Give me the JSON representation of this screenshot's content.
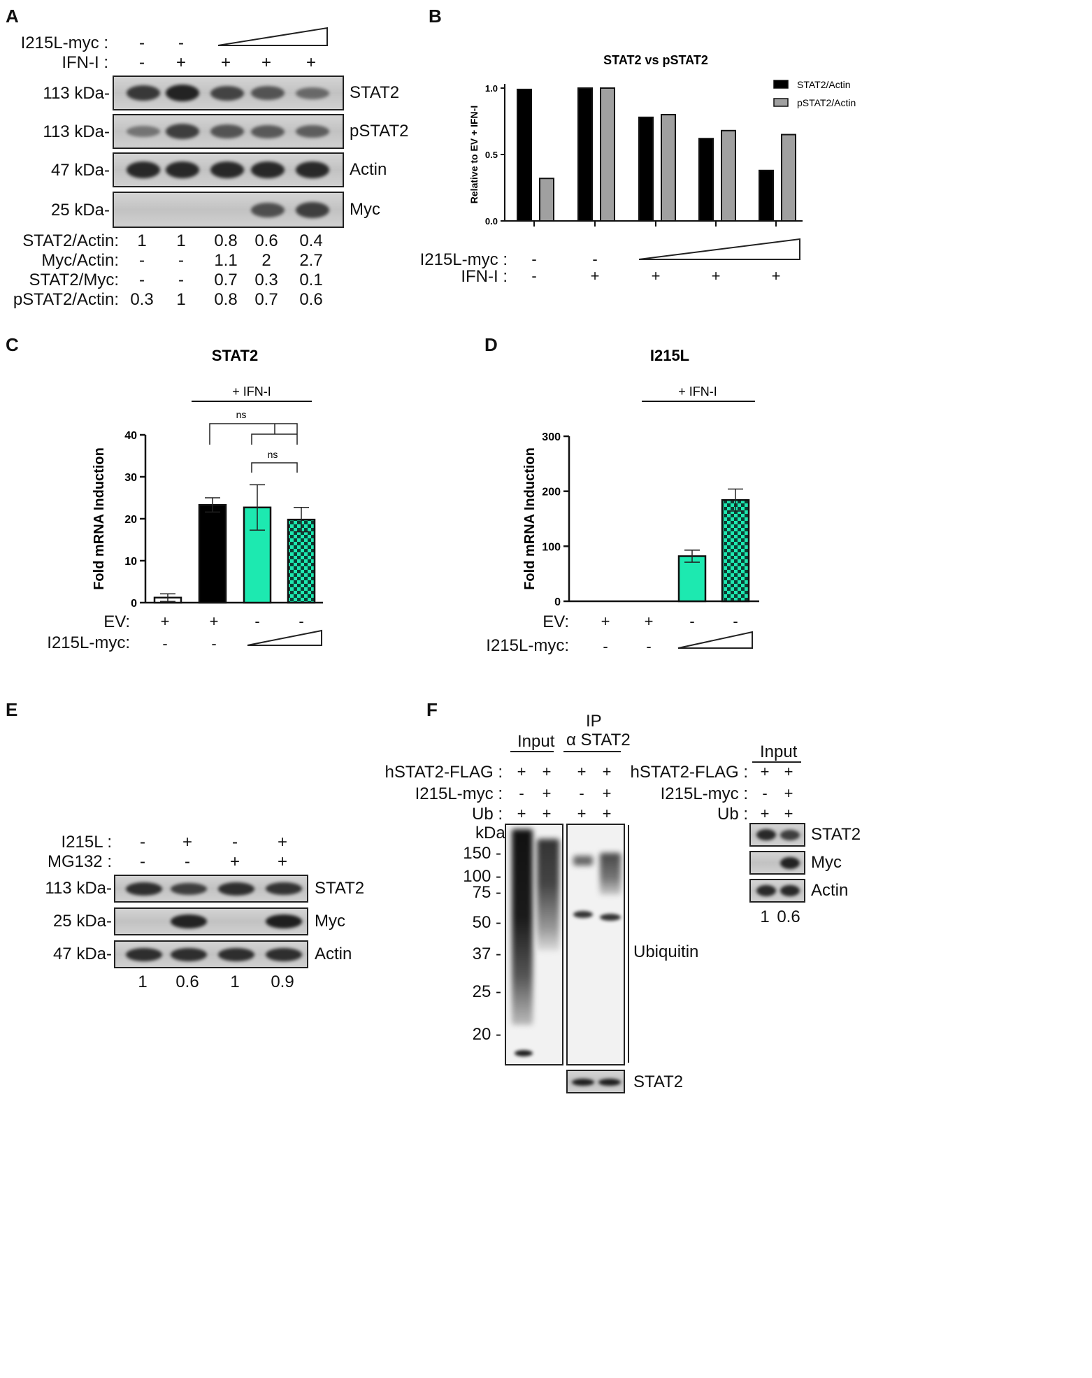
{
  "panels": {
    "A": {
      "letter": "A",
      "row_labels": [
        "I215L-myc :",
        "IFN-I :"
      ],
      "i215l_signs": [
        "-",
        "-"
      ],
      "ifn_signs": [
        "-",
        "+",
        "+",
        "+",
        "+"
      ],
      "blots": [
        {
          "mw": "113 kDa-",
          "name": "STAT2",
          "intensity": [
            0.75,
            0.95,
            0.65,
            0.5,
            0.3
          ]
        },
        {
          "mw": "113 kDa-",
          "name": "pSTAT2",
          "intensity": [
            0.2,
            0.7,
            0.5,
            0.45,
            0.4
          ]
        },
        {
          "mw": "47 kDa-",
          "name": "Actin",
          "intensity": [
            0.9,
            0.9,
            0.9,
            0.9,
            0.9
          ]
        },
        {
          "mw": "25 kDa-",
          "name": "Myc",
          "intensity": [
            0,
            0,
            0,
            0.55,
            0.7
          ]
        }
      ],
      "quant": [
        {
          "label": "STAT2/Actin:",
          "values": [
            "1",
            "1",
            "0.8",
            "0.6",
            "0.4"
          ]
        },
        {
          "label": "Myc/Actin:",
          "values": [
            "-",
            "-",
            "1.1",
            "2",
            "2.7"
          ]
        },
        {
          "label": "STAT2/Myc:",
          "values": [
            "-",
            "-",
            "0.7",
            "0.3",
            "0.1"
          ]
        },
        {
          "label": "pSTAT2/Actin:",
          "values": [
            "0.3",
            "1",
            "0.8",
            "0.7",
            "0.6"
          ]
        }
      ]
    },
    "B": {
      "letter": "B",
      "row_labels": [
        "I215L-myc :",
        "IFN-I :"
      ],
      "i215l_signs": [
        "-",
        "-"
      ],
      "ifn_signs": [
        "-",
        "+",
        "+",
        "+",
        "+"
      ]
    },
    "C": {
      "letter": "C",
      "ifn_bar_label": "+ IFN-I",
      "sig": [
        "ns",
        "ns"
      ],
      "row_labels": [
        "EV:",
        "I215L-myc:"
      ],
      "ev_signs": [
        "+",
        "+",
        "-",
        "-"
      ],
      "i215l_signs": [
        "-",
        "-"
      ]
    },
    "D": {
      "letter": "D",
      "ifn_bar_label": "+ IFN-I",
      "row_labels": [
        "EV:",
        "I215L-myc:"
      ],
      "ev_signs": [
        "+",
        "+",
        "-",
        "-"
      ],
      "i215l_signs": [
        "-",
        "-"
      ]
    },
    "E": {
      "letter": "E",
      "row_labels": [
        "I215L :",
        "MG132 :"
      ],
      "i215l_signs": [
        "-",
        "+",
        "-",
        "+"
      ],
      "mg132_signs": [
        "-",
        "-",
        "+",
        "+"
      ],
      "blots": [
        {
          "mw": "113 kDa-",
          "name": "STAT2",
          "intensity": [
            0.85,
            0.7,
            0.85,
            0.8
          ]
        },
        {
          "mw": "25 kDa-",
          "name": "Myc",
          "intensity": [
            0,
            0.95,
            0,
            1
          ]
        },
        {
          "mw": "47 kDa-",
          "name": "Actin",
          "intensity": [
            0.85,
            0.85,
            0.85,
            0.85
          ]
        }
      ],
      "quant": [
        "1",
        "0.6",
        "1",
        "0.9"
      ]
    },
    "F": {
      "letter": "F",
      "input_label": "Input",
      "ip_label": "IP",
      "ip_antibody": "α STAT2",
      "row_labels": [
        "hSTAT2-FLAG :",
        "I215L-myc :",
        "Ub :"
      ],
      "flag_signs": [
        "+",
        "+",
        "+",
        "+"
      ],
      "i215l_signs": [
        "-",
        "+",
        "-",
        "+"
      ],
      "ub_signs": [
        "+",
        "+",
        "+",
        "+"
      ],
      "kda_label": "kDa",
      "markers": [
        "150 -",
        "100 -",
        "75 -",
        "50 -",
        "37 -",
        "25 -",
        "20 -"
      ],
      "ubiquitin_label": "Ubiquitin",
      "bottom_blot_label": "STAT2",
      "right": {
        "input_label": "Input",
        "row_labels": [
          "hSTAT2-FLAG :",
          "I215L-myc :",
          "Ub :"
        ],
        "flag_signs": [
          "+",
          "+"
        ],
        "i215l_signs": [
          "-",
          "+"
        ],
        "ub_signs": [
          "+",
          "+"
        ],
        "blot_names": [
          "STAT2",
          "Myc",
          "Actin"
        ],
        "quant": [
          "1",
          "0.6"
        ]
      }
    }
  },
  "chart_data": [
    {
      "panel": "B",
      "type": "bar",
      "title": "STAT2 vs pSTAT2",
      "ylabel": "Relative to EV + IFN-I",
      "xlabel": "",
      "categories": [
        "",
        "",
        "",
        "",
        ""
      ],
      "ylim": [
        0,
        1.0
      ],
      "yticks": [
        "0.0",
        "0.5",
        "1.0"
      ],
      "legend_position": "top-right",
      "series": [
        {
          "name": "STAT2/Actin",
          "color": "#000000",
          "values": [
            0.99,
            1.0,
            0.78,
            0.62,
            0.38
          ]
        },
        {
          "name": "pSTAT2/Actin",
          "color": "#a0a0a0",
          "values": [
            0.32,
            1.0,
            0.8,
            0.68,
            0.65
          ]
        }
      ]
    },
    {
      "panel": "C",
      "type": "bar",
      "title": "STAT2",
      "ylabel": "Fold mRNA Induction",
      "xlabel": "",
      "categories": [
        "",
        "",
        "",
        ""
      ],
      "ylim": [
        0,
        40
      ],
      "yticks": [
        "0",
        "10",
        "20",
        "30",
        "40"
      ],
      "values": [
        1.2,
        23.3,
        22.7,
        19.8
      ],
      "errors": [
        0.9,
        1.7,
        5.4,
        2.9
      ],
      "colors": [
        "#ffffff",
        "#000000",
        "#1de9b0",
        "checker"
      ]
    },
    {
      "panel": "D",
      "type": "bar",
      "title": "I215L",
      "ylabel": "Fold mRNA Induction",
      "xlabel": "",
      "categories": [
        "",
        "",
        "",
        ""
      ],
      "ylim": [
        0,
        300
      ],
      "yticks": [
        "0",
        "100",
        "200",
        "300"
      ],
      "values": [
        0,
        0,
        82,
        184
      ],
      "errors": [
        0,
        0,
        11,
        20
      ],
      "colors": [
        "#ffffff",
        "#000000",
        "#1de9b0",
        "checker"
      ]
    }
  ]
}
